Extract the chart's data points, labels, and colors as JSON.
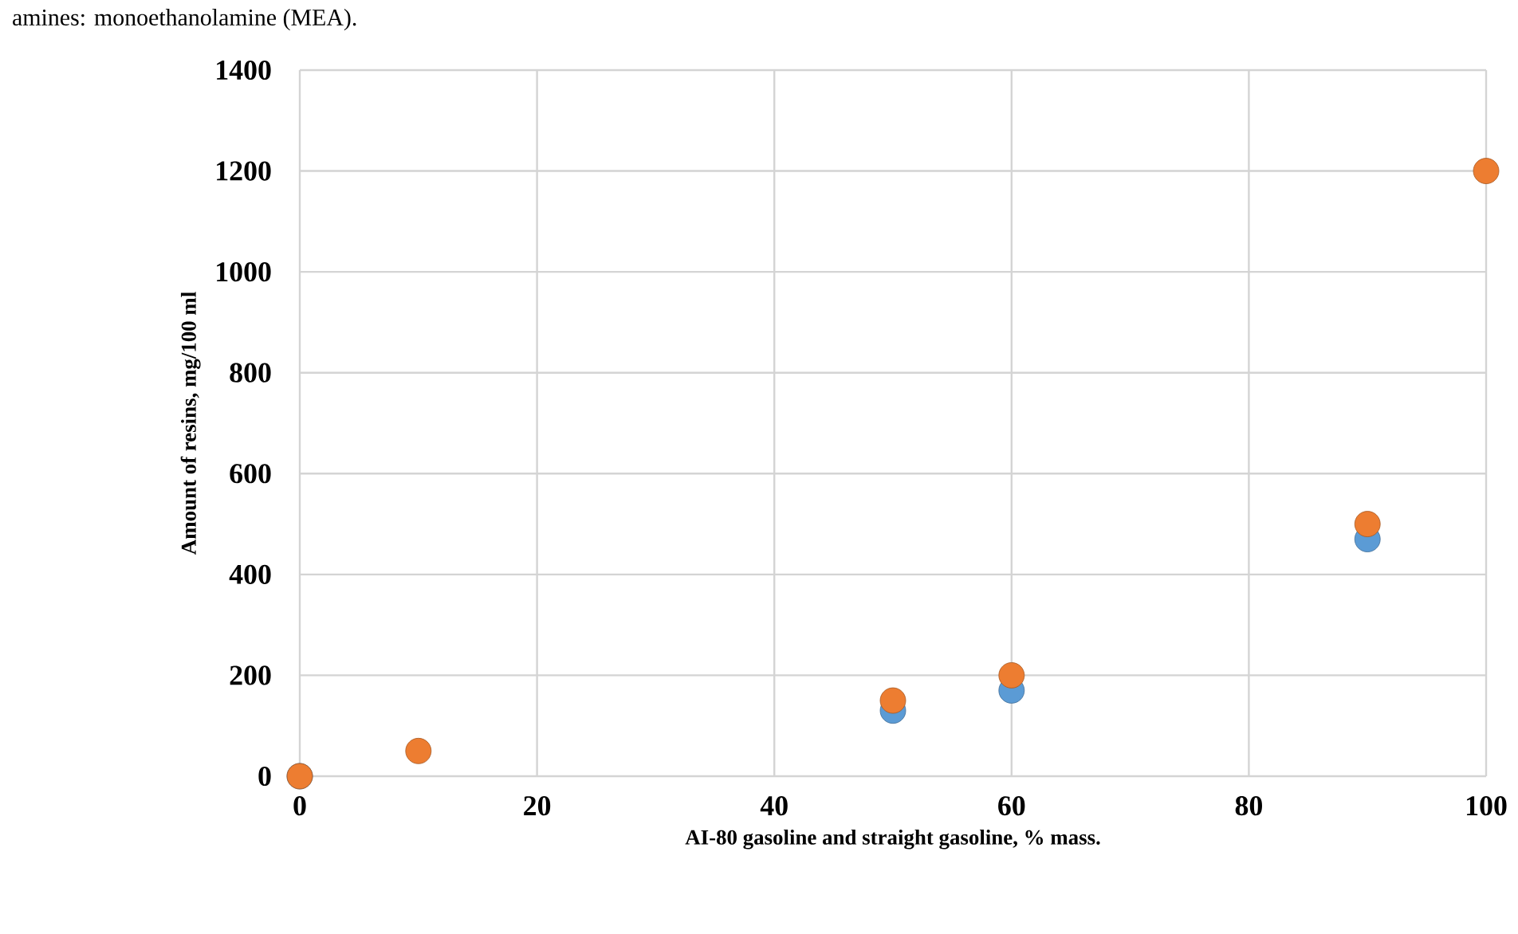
{
  "chart_data": {
    "type": "scatter",
    "xlabel": "AI-80 gasoline and straight gasoline, % mass.",
    "ylabel": "Amount of resins, mg/100 ml",
    "annotations": [
      "amines: monoethanolamine (MEA)."
    ],
    "x": [
      0,
      10,
      50,
      60,
      90,
      100
    ],
    "series": [
      {
        "color": "#5b9bd5",
        "values": [
          0,
          null,
          130,
          170,
          470,
          null
        ]
      },
      {
        "color": "#ed7d31",
        "values": [
          0,
          50,
          150,
          200,
          500,
          1200
        ]
      }
    ],
    "xlim": [
      0,
      100
    ],
    "ylim": [
      0,
      1400
    ],
    "xticks": [
      0,
      20,
      40,
      60,
      80,
      100
    ],
    "yticks": [
      0,
      200,
      400,
      600,
      800,
      1000,
      1200,
      1400
    ],
    "grid": true,
    "marker": "circle"
  }
}
